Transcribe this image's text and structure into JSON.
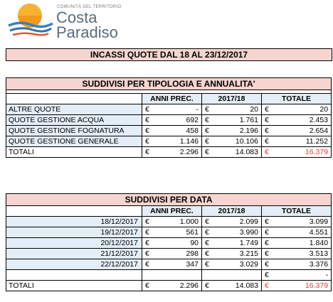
{
  "logo": {
    "small_text": "COMUNITÀ DEL TERRITORIO",
    "line1": "Costa",
    "line2": "Paradiso",
    "sun_color": "#f29a1b",
    "wave_color": "#3a7fc1"
  },
  "banner": {
    "title": "INCASSI QUOTE DAL 18 AL 23/12/2017"
  },
  "table1": {
    "title": "SUDDIVISI PER TIPOLOGIA E ANNUALITA'",
    "headers": {
      "col1": "ANNI PREC.",
      "col2": "2017/18",
      "col3": "TOTALE"
    },
    "rows": [
      {
        "label": "ALTRE QUOTE",
        "prev": "-",
        "cur": "20",
        "tot": "20"
      },
      {
        "label": "QUOTE GESTIONE ACQUA",
        "prev": "692",
        "cur": "1.761",
        "tot": "2.453"
      },
      {
        "label": "QUOTE GESTIONE FOGNATURA",
        "prev": "458",
        "cur": "2.196",
        "tot": "2.654"
      },
      {
        "label": "QUOTE GESTIONE GENERALE",
        "prev": "1.146",
        "cur": "10.106",
        "tot": "11.252"
      }
    ],
    "total": {
      "label": "TOTALI",
      "prev": "2.296",
      "cur": "14.083",
      "tot": "16.379"
    }
  },
  "table2": {
    "title": "SUDDIVISI PER DATA",
    "headers": {
      "col1": "ANNI PREC.",
      "col2": "2017/18",
      "col3": "TOTALE"
    },
    "rows": [
      {
        "date": "18/12/2017",
        "prev": "1.000",
        "cur": "2.099",
        "tot": "3.099"
      },
      {
        "date": "19/12/2017",
        "prev": "561",
        "cur": "3.990",
        "tot": "4.551"
      },
      {
        "date": "20/12/2017",
        "prev": "90",
        "cur": "1.749",
        "tot": "1.840"
      },
      {
        "date": "21/12/2017",
        "prev": "298",
        "cur": "3.215",
        "tot": "3.513"
      },
      {
        "date": "22/12/2017",
        "prev": "347",
        "cur": "3.029",
        "tot": "3.376"
      }
    ],
    "blank_row": {
      "tot": "-"
    },
    "total": {
      "label": "TOTALI",
      "prev": "2.296",
      "cur": "14.083",
      "tot": "16.379"
    }
  },
  "currency": "€"
}
